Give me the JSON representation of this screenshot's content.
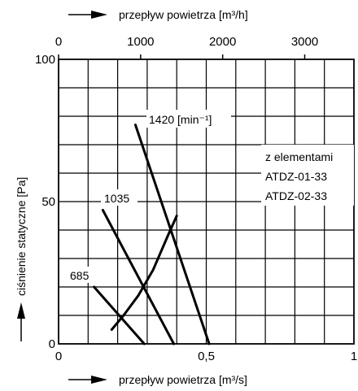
{
  "chart_data": {
    "type": "line",
    "top_axis": {
      "label": "przepływ powietrza [m³/h]",
      "ticks": [
        "0",
        "1000",
        "2000",
        "3000"
      ],
      "tick_values": [
        0,
        1000,
        2000,
        3000
      ]
    },
    "xlabel": "przepływ powietrza [m³/s]",
    "x_ticks": [
      "0",
      "0,5",
      "1"
    ],
    "x_tick_values": [
      0,
      0.5,
      1
    ],
    "xlim": [
      0,
      1
    ],
    "ylabel": "ciśnienie statyczne [Pa]",
    "y_ticks": [
      "0",
      "50",
      "100"
    ],
    "y_tick_values": [
      0,
      50,
      100
    ],
    "ylim": [
      0,
      100
    ],
    "grid": true,
    "series": [
      {
        "name": "1420 [min⁻¹]",
        "points": [
          [
            0.26,
            77
          ],
          [
            0.51,
            0
          ]
        ]
      },
      {
        "name": "1035",
        "points": [
          [
            0.15,
            47
          ],
          [
            0.39,
            0
          ]
        ]
      },
      {
        "name": "685",
        "points": [
          [
            0.12,
            20
          ],
          [
            0.29,
            0
          ]
        ]
      },
      {
        "name": "",
        "points": [
          [
            0.18,
            5
          ],
          [
            0.22,
            10
          ],
          [
            0.27,
            17
          ],
          [
            0.32,
            26
          ],
          [
            0.37,
            38
          ],
          [
            0.4,
            45
          ]
        ]
      }
    ],
    "annotation": [
      "z elementami",
      "ATDZ-01-33",
      "ATDZ-02-33"
    ]
  }
}
